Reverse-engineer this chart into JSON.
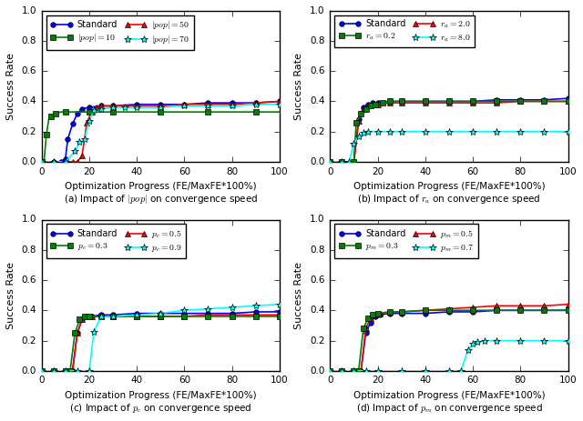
{
  "fig_width": 6.4,
  "fig_height": 4.63,
  "dpi": 100,
  "subplots": [
    {
      "id": "a",
      "title_line1": "Optimization Progress (FE/MaxFE*100%)",
      "title_line2": "(a) Impact of $|\\mathit{pop}|$ on convergence speed",
      "ylabel": "Success Rate",
      "ylim": [
        0,
        1.0
      ],
      "xlim": [
        0,
        100
      ],
      "series": [
        {
          "label": "Standard",
          "color": "blue",
          "marker": "o",
          "markersize": 4,
          "linewidth": 1.2,
          "x": [
            0,
            5,
            8,
            10,
            11,
            13,
            15,
            17,
            20,
            25,
            30,
            40,
            50,
            60,
            70,
            80,
            90,
            100
          ],
          "y": [
            0.0,
            0.0,
            0.0,
            0.02,
            0.15,
            0.25,
            0.32,
            0.35,
            0.36,
            0.37,
            0.37,
            0.38,
            0.38,
            0.38,
            0.39,
            0.39,
            0.39,
            0.4
          ]
        },
        {
          "label": "$|\\mathit{pop}|=50$",
          "color": "red",
          "marker": "^",
          "markersize": 4,
          "linewidth": 1.2,
          "x": [
            0,
            5,
            10,
            13,
            15,
            17,
            19,
            21,
            23,
            25,
            30,
            40,
            50,
            60,
            70,
            80,
            90,
            100
          ],
          "y": [
            0.0,
            0.0,
            0.0,
            0.0,
            0.0,
            0.04,
            0.26,
            0.33,
            0.36,
            0.37,
            0.37,
            0.37,
            0.37,
            0.38,
            0.38,
            0.38,
            0.39,
            0.4
          ]
        },
        {
          "label": "$|\\mathit{pop}|=10$",
          "color": "green",
          "marker": "s",
          "markersize": 4,
          "linewidth": 1.2,
          "x": [
            0,
            1,
            2,
            3,
            4,
            5,
            6,
            8,
            10,
            15,
            20,
            25,
            30,
            40,
            50,
            60,
            70,
            80,
            90,
            100
          ],
          "y": [
            0.0,
            0.0,
            0.18,
            0.28,
            0.3,
            0.31,
            0.32,
            0.33,
            0.33,
            0.33,
            0.33,
            0.33,
            0.33,
            0.33,
            0.33,
            0.33,
            0.33,
            0.33,
            0.33,
            0.33
          ]
        },
        {
          "label": "$|\\mathit{pop}|=70$",
          "color": "cyan",
          "marker": "*",
          "markersize": 6,
          "linewidth": 1.2,
          "x": [
            0,
            5,
            10,
            14,
            16,
            18,
            20,
            22,
            25,
            30,
            35,
            40,
            50,
            60,
            70,
            80,
            90,
            100
          ],
          "y": [
            0.0,
            0.0,
            0.0,
            0.07,
            0.13,
            0.15,
            0.27,
            0.34,
            0.35,
            0.36,
            0.36,
            0.36,
            0.36,
            0.37,
            0.37,
            0.37,
            0.38,
            0.38
          ]
        }
      ],
      "legend_order": [
        0,
        2,
        1,
        3
      ],
      "legend_ncol": 2,
      "legend_loc": "upper left"
    },
    {
      "id": "b",
      "title_line1": "Optimization Progress (FE/MaxFE*100%)",
      "title_line2": "(b) Impact of $r_a$ on convergence speed",
      "ylabel": "Success Rate",
      "ylim": [
        0,
        1.0
      ],
      "xlim": [
        0,
        100
      ],
      "series": [
        {
          "label": "Standard",
          "color": "blue",
          "marker": "o",
          "markersize": 4,
          "linewidth": 1.2,
          "x": [
            0,
            5,
            10,
            12,
            14,
            16,
            18,
            20,
            25,
            30,
            40,
            50,
            60,
            70,
            80,
            90,
            100
          ],
          "y": [
            0.0,
            0.0,
            0.0,
            0.28,
            0.36,
            0.38,
            0.39,
            0.39,
            0.4,
            0.4,
            0.4,
            0.4,
            0.4,
            0.41,
            0.41,
            0.41,
            0.42
          ]
        },
        {
          "label": "$r_a=2.0$",
          "color": "red",
          "marker": "^",
          "markersize": 4,
          "linewidth": 1.2,
          "x": [
            0,
            5,
            10,
            12,
            14,
            16,
            18,
            20,
            25,
            30,
            40,
            50,
            60,
            70,
            80,
            90,
            100
          ],
          "y": [
            0.0,
            0.0,
            0.0,
            0.27,
            0.35,
            0.37,
            0.38,
            0.38,
            0.39,
            0.39,
            0.39,
            0.39,
            0.39,
            0.39,
            0.4,
            0.4,
            0.4
          ]
        },
        {
          "label": "$r_a=0.2$",
          "color": "green",
          "marker": "s",
          "markersize": 4,
          "linewidth": 1.2,
          "x": [
            0,
            5,
            10,
            11,
            13,
            15,
            17,
            19,
            22,
            25,
            30,
            40,
            50,
            60,
            70,
            80,
            90,
            100
          ],
          "y": [
            0.0,
            0.0,
            0.0,
            0.26,
            0.32,
            0.35,
            0.37,
            0.38,
            0.39,
            0.4,
            0.4,
            0.4,
            0.4,
            0.4,
            0.4,
            0.4,
            0.4,
            0.4
          ]
        },
        {
          "label": "$r_a=8.0$",
          "color": "cyan",
          "marker": "*",
          "markersize": 6,
          "linewidth": 1.2,
          "x": [
            0,
            5,
            8,
            10,
            12,
            14,
            16,
            20,
            25,
            30,
            40,
            50,
            60,
            70,
            80,
            90,
            100
          ],
          "y": [
            0.0,
            0.0,
            0.0,
            0.12,
            0.17,
            0.19,
            0.2,
            0.2,
            0.2,
            0.2,
            0.2,
            0.2,
            0.2,
            0.2,
            0.2,
            0.2,
            0.2
          ]
        }
      ],
      "legend_order": [
        0,
        2,
        1,
        3
      ],
      "legend_ncol": 2,
      "legend_loc": "upper left"
    },
    {
      "id": "c",
      "title_line1": "Optimization Progress (FE/MaxFE*100%)",
      "title_line2": "(c) Impact of $p_c$ on convergence speed",
      "ylabel": "Success Rate",
      "ylim": [
        0,
        1.0
      ],
      "xlim": [
        0,
        100
      ],
      "series": [
        {
          "label": "Standard",
          "color": "blue",
          "marker": "o",
          "markersize": 4,
          "linewidth": 1.2,
          "x": [
            0,
            5,
            10,
            13,
            15,
            17,
            19,
            21,
            25,
            30,
            40,
            50,
            60,
            70,
            80,
            90,
            100
          ],
          "y": [
            0.0,
            0.0,
            0.0,
            0.0,
            0.25,
            0.34,
            0.36,
            0.36,
            0.37,
            0.37,
            0.38,
            0.38,
            0.38,
            0.38,
            0.38,
            0.39,
            0.39
          ]
        },
        {
          "label": "$p_c=0.5$",
          "color": "red",
          "marker": "^",
          "markersize": 4,
          "linewidth": 1.2,
          "x": [
            0,
            5,
            10,
            13,
            15,
            17,
            19,
            21,
            25,
            30,
            40,
            50,
            60,
            70,
            80,
            90,
            100
          ],
          "y": [
            0.0,
            0.0,
            0.0,
            0.0,
            0.25,
            0.34,
            0.36,
            0.36,
            0.36,
            0.36,
            0.36,
            0.36,
            0.36,
            0.37,
            0.37,
            0.37,
            0.37
          ]
        },
        {
          "label": "$p_c=0.3$",
          "color": "green",
          "marker": "s",
          "markersize": 4,
          "linewidth": 1.2,
          "x": [
            0,
            5,
            10,
            12,
            14,
            16,
            18,
            20,
            25,
            30,
            40,
            50,
            60,
            70,
            80,
            90,
            100
          ],
          "y": [
            0.0,
            0.0,
            0.0,
            0.0,
            0.25,
            0.34,
            0.36,
            0.36,
            0.36,
            0.36,
            0.36,
            0.36,
            0.36,
            0.36,
            0.36,
            0.36,
            0.36
          ]
        },
        {
          "label": "$p_c=0.9$",
          "color": "cyan",
          "marker": "*",
          "markersize": 6,
          "linewidth": 1.2,
          "x": [
            0,
            5,
            10,
            15,
            20,
            22,
            25,
            30,
            40,
            50,
            60,
            70,
            80,
            90,
            100
          ],
          "y": [
            0.0,
            0.0,
            0.0,
            0.0,
            0.0,
            0.26,
            0.36,
            0.36,
            0.37,
            0.38,
            0.4,
            0.41,
            0.42,
            0.43,
            0.44
          ]
        }
      ],
      "legend_order": [
        0,
        2,
        1,
        3
      ],
      "legend_ncol": 2,
      "legend_loc": "upper left"
    },
    {
      "id": "d",
      "title_line1": "Optimization Progress (FE/MaxFE*100%)",
      "title_line2": "(d) Impact of $p_m$ on convergence speed",
      "ylabel": "Success Rate",
      "ylim": [
        0,
        1.0
      ],
      "xlim": [
        0,
        100
      ],
      "series": [
        {
          "label": "Standard",
          "color": "blue",
          "marker": "o",
          "markersize": 4,
          "linewidth": 1.2,
          "x": [
            0,
            5,
            10,
            13,
            15,
            17,
            19,
            21,
            25,
            30,
            40,
            50,
            60,
            70,
            80,
            90,
            100
          ],
          "y": [
            0.0,
            0.0,
            0.0,
            0.0,
            0.25,
            0.32,
            0.36,
            0.37,
            0.38,
            0.38,
            0.38,
            0.39,
            0.39,
            0.4,
            0.4,
            0.4,
            0.4
          ]
        },
        {
          "label": "$p_m=0.5$",
          "color": "red",
          "marker": "^",
          "markersize": 4,
          "linewidth": 1.2,
          "x": [
            0,
            5,
            10,
            13,
            15,
            17,
            19,
            21,
            25,
            30,
            40,
            50,
            60,
            70,
            80,
            90,
            100
          ],
          "y": [
            0.0,
            0.0,
            0.0,
            0.0,
            0.28,
            0.35,
            0.37,
            0.38,
            0.39,
            0.39,
            0.4,
            0.41,
            0.42,
            0.43,
            0.43,
            0.43,
            0.44
          ]
        },
        {
          "label": "$p_m=0.3$",
          "color": "green",
          "marker": "s",
          "markersize": 4,
          "linewidth": 1.2,
          "x": [
            0,
            5,
            10,
            12,
            14,
            16,
            18,
            20,
            25,
            30,
            40,
            50,
            60,
            70,
            80,
            90,
            100
          ],
          "y": [
            0.0,
            0.0,
            0.0,
            0.0,
            0.28,
            0.35,
            0.37,
            0.38,
            0.39,
            0.39,
            0.4,
            0.4,
            0.4,
            0.4,
            0.4,
            0.4,
            0.4
          ]
        },
        {
          "label": "$p_m=0.7$",
          "color": "cyan",
          "marker": "*",
          "markersize": 6,
          "linewidth": 1.2,
          "x": [
            0,
            5,
            10,
            15,
            20,
            30,
            40,
            50,
            55,
            58,
            60,
            62,
            65,
            70,
            80,
            90,
            100
          ],
          "y": [
            0.0,
            0.0,
            0.0,
            0.0,
            0.0,
            0.0,
            0.0,
            0.0,
            0.0,
            0.14,
            0.18,
            0.19,
            0.2,
            0.2,
            0.2,
            0.2,
            0.2
          ]
        }
      ],
      "legend_order": [
        0,
        2,
        1,
        3
      ],
      "legend_ncol": 2,
      "legend_loc": "upper left"
    }
  ]
}
